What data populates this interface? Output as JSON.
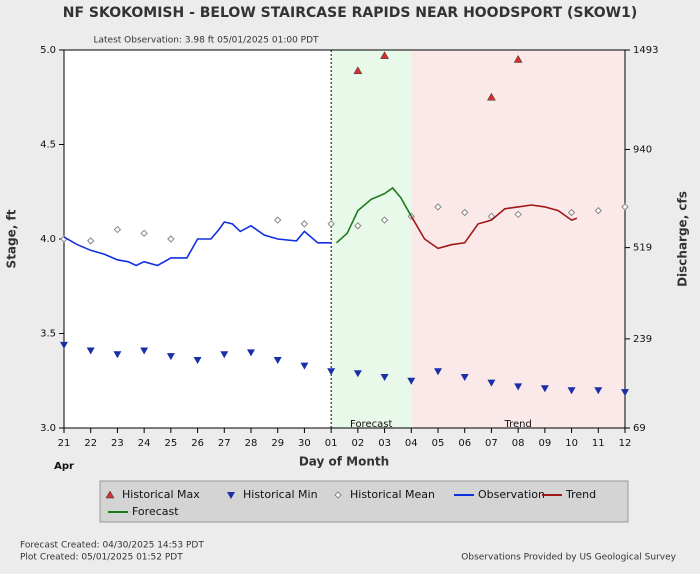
{
  "chart_data": {
    "type": "hydrograph",
    "title": "NF SKOKOMISH - BELOW STAIRCASE RAPIDS NEAR HOODSPORT  (SKOW1)",
    "subtitle": "Latest Observation: 3.98 ft 05/01/2025 01:00 PDT",
    "x_label": "Day of Month",
    "month_label": "Apr",
    "y_label": "Stage, ft",
    "y2_label": "Discharge, cfs",
    "xlim": [
      0,
      21
    ],
    "xticks": [
      {
        "value": 0,
        "label": "21"
      },
      {
        "value": 1,
        "label": "22"
      },
      {
        "value": 2,
        "label": "23"
      },
      {
        "value": 3,
        "label": "24"
      },
      {
        "value": 4,
        "label": "25"
      },
      {
        "value": 5,
        "label": "26"
      },
      {
        "value": 6,
        "label": "27"
      },
      {
        "value": 7,
        "label": "28"
      },
      {
        "value": 8,
        "label": "29"
      },
      {
        "value": 9,
        "label": "30"
      },
      {
        "value": 10,
        "label": "01"
      },
      {
        "value": 11,
        "label": "02"
      },
      {
        "value": 12,
        "label": "03"
      },
      {
        "value": 13,
        "label": "04"
      },
      {
        "value": 14,
        "label": "05"
      },
      {
        "value": 15,
        "label": "06"
      },
      {
        "value": 16,
        "label": "07"
      },
      {
        "value": 17,
        "label": "08"
      },
      {
        "value": 18,
        "label": "09"
      },
      {
        "value": 19,
        "label": "10"
      },
      {
        "value": 20,
        "label": "11"
      },
      {
        "value": 21,
        "label": "12"
      }
    ],
    "ylim": [
      3,
      5
    ],
    "yticks": [
      {
        "value": 3,
        "label": "3.0"
      },
      3.5,
      {
        "value": 4,
        "label": "4.0"
      },
      4.5,
      {
        "value": 5,
        "label": "5.0"
      }
    ],
    "y2lim": [
      69,
      1493
    ],
    "y2scale": "sqrt",
    "y2ticks": [
      69,
      239,
      519,
      940,
      1493
    ],
    "regions": [
      {
        "label": "Forecast",
        "from": 10,
        "to": 13,
        "color": "#e9f9e9"
      },
      {
        "label": "Trend",
        "from": 13,
        "to": 21,
        "color": "#fbe9e9"
      }
    ],
    "series": [
      {
        "name": "Historical Max",
        "style": "triangle-up",
        "color": "#d03030",
        "x": [
          11,
          12,
          16,
          17
        ],
        "values": [
          4.89,
          4.97,
          4.75,
          4.95
        ]
      },
      {
        "name": "Historical Min",
        "style": "triangle-down",
        "color": "#1a2ea8",
        "x": [
          0,
          1,
          2,
          3,
          4,
          5,
          6,
          7,
          8,
          9,
          10,
          11,
          12,
          13,
          14,
          15,
          16,
          17,
          18,
          19,
          20,
          21
        ],
        "values": [
          3.44,
          3.41,
          3.39,
          3.41,
          3.38,
          3.36,
          3.39,
          3.4,
          3.36,
          3.33,
          3.3,
          3.29,
          3.27,
          3.25,
          3.3,
          3.27,
          3.24,
          3.22,
          3.21,
          3.2,
          3.2,
          3.19
        ]
      },
      {
        "name": "Historical Mean",
        "style": "diamond",
        "color": "#888888",
        "x": [
          0,
          1,
          2,
          3,
          4,
          5,
          6,
          7,
          8,
          9,
          10,
          11,
          12,
          13,
          14,
          15,
          16,
          17,
          18,
          19,
          20,
          21
        ],
        "values": [
          4.0,
          3.99,
          4.05,
          4.03,
          4.0,
          null,
          null,
          null,
          4.1,
          4.08,
          4.08,
          4.07,
          4.1,
          4.12,
          4.17,
          4.14,
          4.12,
          4.13,
          null,
          4.14,
          4.15,
          4.17
        ]
      },
      {
        "name": "Observation",
        "style": "line",
        "color": "#1030e0",
        "x": [
          0,
          0.5,
          1,
          1.5,
          2,
          2.4,
          2.7,
          3,
          3.5,
          4,
          4.6,
          5,
          5.5,
          5.8,
          6,
          6.3,
          6.6,
          7,
          7.5,
          8,
          8.7,
          9,
          9.5,
          10
        ],
        "values": [
          4.01,
          3.97,
          3.94,
          3.92,
          3.89,
          3.88,
          3.86,
          3.88,
          3.86,
          3.9,
          3.9,
          4.0,
          4.0,
          4.05,
          4.09,
          4.08,
          4.04,
          4.07,
          4.02,
          4.0,
          3.99,
          4.04,
          3.98,
          3.98
        ]
      },
      {
        "name": "Trend",
        "style": "line",
        "color": "#a01818",
        "x": [
          13,
          13.5,
          14,
          14.5,
          15,
          15.5,
          16,
          16.5,
          17,
          17.5,
          18,
          18.5,
          19,
          19.2
        ],
        "values": [
          4.12,
          4.0,
          3.95,
          3.97,
          3.98,
          4.08,
          4.1,
          4.16,
          4.17,
          4.18,
          4.17,
          4.15,
          4.1,
          4.11
        ]
      },
      {
        "name": "Forecast",
        "style": "line",
        "color": "#1a7a1a",
        "x": [
          10.2,
          10.6,
          11,
          11.5,
          12,
          12.3,
          12.6,
          13
        ],
        "values": [
          3.98,
          4.03,
          4.15,
          4.21,
          4.24,
          4.27,
          4.22,
          4.12
        ]
      }
    ],
    "footer_left": [
      "Forecast Created: 04/30/2025 14:53 PDT",
      "Plot Created: 05/01/2025 01:52 PDT"
    ],
    "footer_right": "Observations Provided by US Geological Survey"
  }
}
